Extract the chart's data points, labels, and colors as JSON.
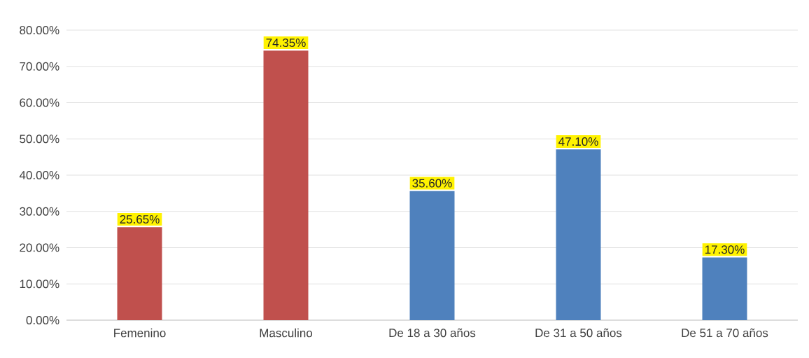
{
  "chart_data": {
    "type": "bar",
    "categories": [
      "Femenino",
      "Masculino",
      "De 18 a 30 años",
      "De 31 a 50 años",
      "De 51 a 70 años"
    ],
    "values": [
      25.65,
      74.35,
      35.6,
      47.1,
      17.3
    ],
    "value_labels": [
      "25.65%",
      "74.35%",
      "35.60%",
      "47.10%",
      "17.30%"
    ],
    "colors": [
      "#c0504d",
      "#c0504d",
      "#4f81bd",
      "#4f81bd",
      "#4f81bd"
    ],
    "ylim": [
      0,
      80
    ],
    "yticks": [
      {
        "value": 0,
        "label": "0.00%"
      },
      {
        "value": 10,
        "label": "10.00%"
      },
      {
        "value": 20,
        "label": "20.00%"
      },
      {
        "value": 30,
        "label": "30.00%"
      },
      {
        "value": 40,
        "label": "40.00%"
      },
      {
        "value": 50,
        "label": "50.00%"
      },
      {
        "value": 60,
        "label": "60.00%"
      },
      {
        "value": 70,
        "label": "70.00%"
      },
      {
        "value": 80,
        "label": "80.00%"
      }
    ],
    "grid": "y"
  }
}
